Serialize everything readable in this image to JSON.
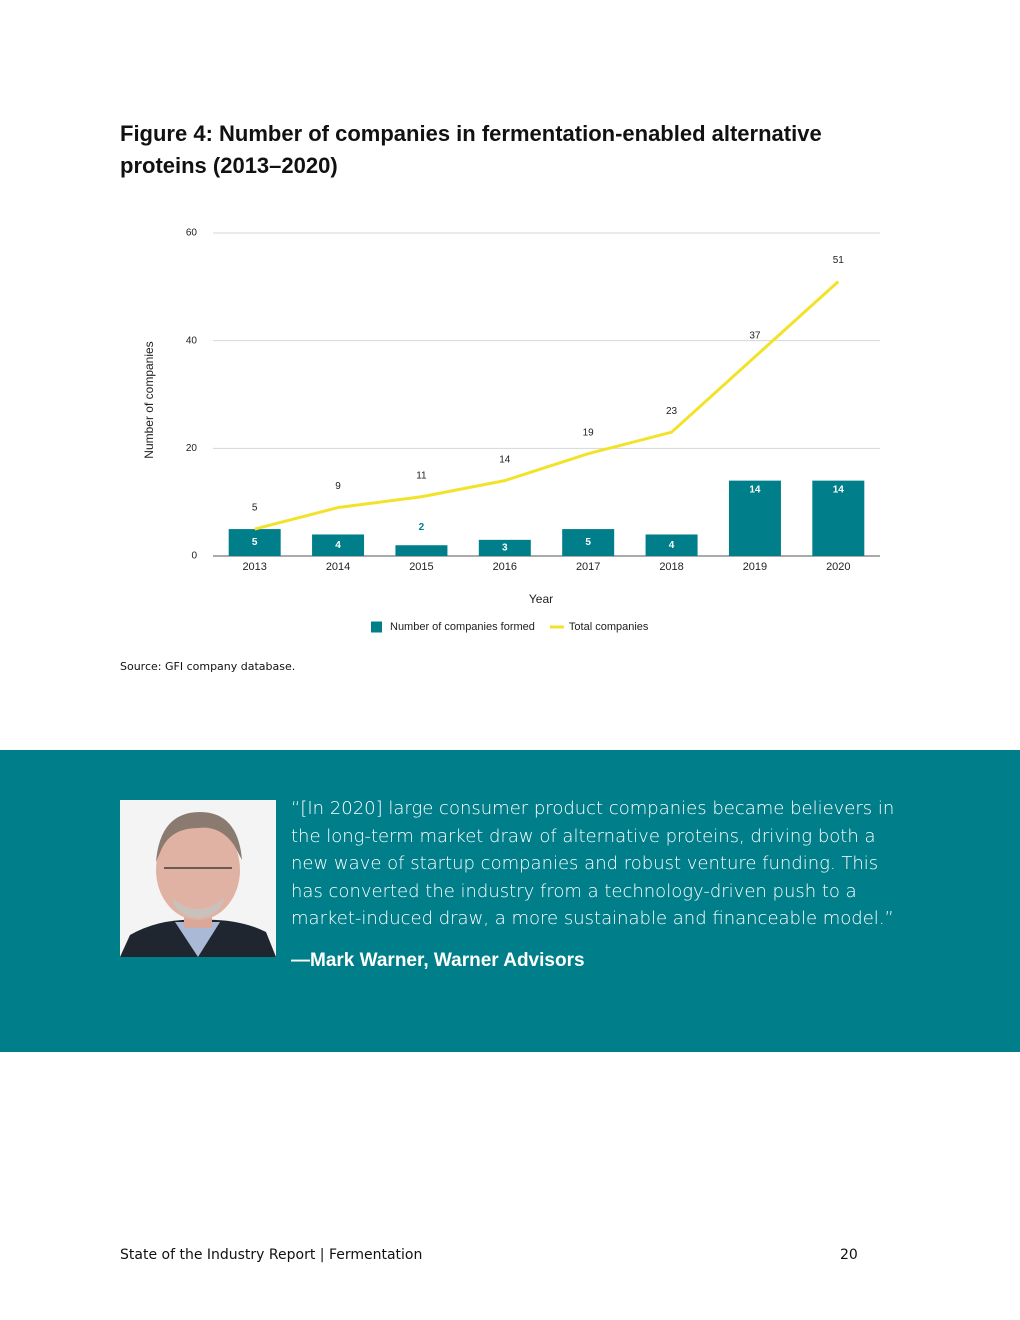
{
  "figure_title": "Figure 4: Number of companies in fermentation-enabled alternative proteins (2013–2020)",
  "chart_data": {
    "type": "bar",
    "x_label": "Year",
    "y_label": "Number of companies",
    "categories": [
      "2013",
      "2014",
      "2015",
      "2016",
      "2017",
      "2018",
      "2019",
      "2020"
    ],
    "series": [
      {
        "name": "Number of companies formed",
        "type": "bar",
        "color": "#007f8a",
        "values": [
          5,
          4,
          2,
          3,
          5,
          4,
          14,
          14
        ]
      },
      {
        "name": "Total companies",
        "type": "line",
        "color": "#f3e22a",
        "values": [
          5,
          9,
          11,
          14,
          19,
          23,
          37,
          51
        ]
      }
    ],
    "ylim": [
      0,
      60
    ],
    "yticks": [
      0,
      20,
      40,
      60
    ],
    "grid": true,
    "legend": "bottom"
  },
  "source": "Source: GFI company database.",
  "quote": {
    "text": "“[In 2020] large consumer product companies became believers in the long-term market draw of alternative proteins, driving both a new wave of startup companies and robust venture funding. This has converted the industry from a technology-driven push to a market-induced draw, a more sustainable and financeable model.”",
    "attribution": "—Mark Warner, Warner Advisors"
  },
  "footer": {
    "left": "State of the Industry Report | Fermentation",
    "page": "20"
  }
}
